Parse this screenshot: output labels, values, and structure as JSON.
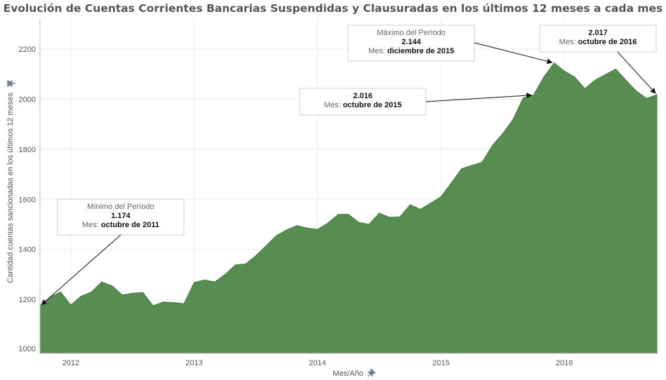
{
  "chart_data": {
    "type": "area",
    "title": "Evolución de Cuentas Corrientes Bancarias Suspendidas y Clausuradas en los últimos 12 meses a cada mes",
    "xlabel": "Mes/Año",
    "ylabel": "Cantidad cuentas sancionadas en los últimos 12 meses",
    "ylim": [
      985,
      2320
    ],
    "y_ticks": [
      1000,
      1200,
      1400,
      1600,
      1800,
      2000,
      2200
    ],
    "y_tick_labels": [
      "1000",
      "1200",
      "1400",
      "1600",
      "1800",
      "2000",
      "2200"
    ],
    "x_ticks": [
      {
        "label": "2012",
        "month": "2012-01"
      },
      {
        "label": "2013",
        "month": "2013-01"
      },
      {
        "label": "2014",
        "month": "2014-01"
      },
      {
        "label": "2015",
        "month": "2015-01"
      },
      {
        "label": "2016",
        "month": "2016-01"
      }
    ],
    "x_range": [
      "2011-10",
      "2016-10"
    ],
    "grid": true,
    "color": "#4f8748",
    "x": [
      "2011-10",
      "2011-11",
      "2011-12",
      "2012-01",
      "2012-02",
      "2012-03",
      "2012-04",
      "2012-05",
      "2012-06",
      "2012-07",
      "2012-08",
      "2012-09",
      "2012-10",
      "2012-11",
      "2012-12",
      "2013-01",
      "2013-02",
      "2013-03",
      "2013-04",
      "2013-05",
      "2013-06",
      "2013-07",
      "2013-08",
      "2013-09",
      "2013-10",
      "2013-11",
      "2013-12",
      "2014-01",
      "2014-02",
      "2014-03",
      "2014-04",
      "2014-05",
      "2014-06",
      "2014-07",
      "2014-08",
      "2014-09",
      "2014-10",
      "2014-11",
      "2014-12",
      "2015-01",
      "2015-02",
      "2015-03",
      "2015-04",
      "2015-05",
      "2015-06",
      "2015-07",
      "2015-08",
      "2015-09",
      "2015-10",
      "2015-11",
      "2015-12",
      "2016-01",
      "2016-02",
      "2016-03",
      "2016-04",
      "2016-05",
      "2016-06",
      "2016-07",
      "2016-08",
      "2016-09",
      "2016-10"
    ],
    "values": [
      1174,
      1210,
      1230,
      1178,
      1213,
      1230,
      1270,
      1255,
      1218,
      1225,
      1228,
      1175,
      1190,
      1188,
      1183,
      1268,
      1278,
      1270,
      1300,
      1338,
      1342,
      1375,
      1415,
      1455,
      1478,
      1495,
      1485,
      1480,
      1505,
      1540,
      1540,
      1508,
      1500,
      1545,
      1528,
      1530,
      1578,
      1560,
      1585,
      1610,
      1665,
      1722,
      1735,
      1748,
      1815,
      1862,
      1918,
      2005,
      2016,
      2088,
      2144,
      2112,
      2088,
      2042,
      2076,
      2098,
      2120,
      2075,
      2032,
      2003,
      2017
    ],
    "annotations": [
      {
        "line1": "Mínimo del Período",
        "value": "1.174",
        "mes_label": "Mes:",
        "date": "octubre de 2011",
        "target": "2011-10"
      },
      {
        "line1": "",
        "value": "2.016",
        "mes_label": "Mes:",
        "date": "octubre de 2015",
        "target": "2015-10"
      },
      {
        "line1": "Máximo del Período",
        "value": "2.144",
        "mes_label": "Mes:",
        "date": "diciembre de 2015",
        "target": "2015-12"
      },
      {
        "line1": "",
        "value": "2.017",
        "mes_label": "Mes:",
        "date": "octubre de 2016",
        "target": "2016-10"
      }
    ]
  }
}
